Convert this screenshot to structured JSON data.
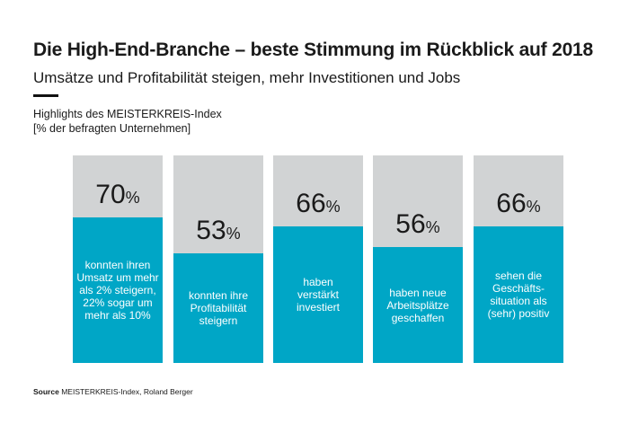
{
  "header": {
    "title": "Die High-End-Branche – beste Stimmung im Rückblick auf 2018",
    "subtitle": "Umsätze und Profitabilität steigen, mehr Investitionen und Jobs"
  },
  "highlights": {
    "line1": "Highlights des MEISTERKREIS-Index",
    "line2": "[% der befragten Unternehmen]"
  },
  "chart_data": {
    "type": "bar",
    "ylim": [
      0,
      100
    ],
    "unit": "%",
    "colors": {
      "fill": "#00a6c6",
      "background": "#d1d3d4"
    },
    "bars": [
      {
        "value": 70,
        "value_label": "70",
        "label": "konnten ihren\nUmsatz um mehr\nals 2% steigern,\n22% sogar um\nmehr als 10%"
      },
      {
        "value": 53,
        "value_label": "53",
        "label": "konnten ihre\nProfitabilität\nsteigern"
      },
      {
        "value": 66,
        "value_label": "66",
        "label": "haben\nverstärkt\ninvestiert"
      },
      {
        "value": 56,
        "value_label": "56",
        "label": "haben neue\nArbeitsplätze\ngeschaffen"
      },
      {
        "value": 66,
        "value_label": "66",
        "label": "sehen die\nGeschäfts-\nsituation als\n(sehr) positiv"
      }
    ]
  },
  "source": {
    "label": "Source",
    "text": "MEISTERKREIS-Index, Roland Berger"
  }
}
